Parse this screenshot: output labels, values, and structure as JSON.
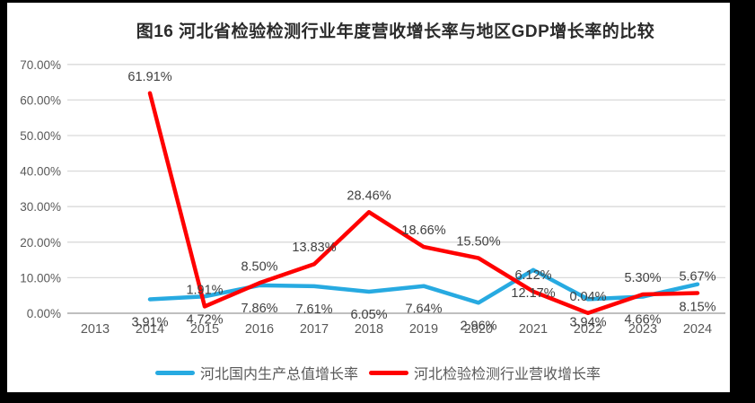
{
  "frame": {
    "outer_background": "#000000",
    "chart_background": "#ffffff"
  },
  "chart_data": {
    "type": "line",
    "title": "图16 河北省检验检测行业年度营收增长率与地区GDP增长率的比较",
    "categories": [
      "2013",
      "2014",
      "2015",
      "2016",
      "2017",
      "2018",
      "2019",
      "2020",
      "2021",
      "2022",
      "2023",
      "2024"
    ],
    "series": [
      {
        "name": "河北国内生产总值增长率",
        "color": "#27AAE1",
        "label_position": "below",
        "values": [
          null,
          3.91,
          4.72,
          7.86,
          7.61,
          6.05,
          7.64,
          2.96,
          12.17,
          3.94,
          4.66,
          8.15
        ],
        "labels": [
          "",
          "3.91%",
          "4.72%",
          "7.86%",
          "7.61%",
          "6.05%",
          "7.64%",
          "2.96%",
          "12.17%",
          "3.94%",
          "4.66%",
          "8.15%"
        ]
      },
      {
        "name": "河北检验检测行业营收增长率",
        "color": "#FF0000",
        "label_position": "above",
        "values": [
          null,
          61.91,
          1.91,
          8.5,
          13.83,
          28.46,
          18.66,
          15.5,
          6.12,
          0.04,
          5.3,
          5.67
        ],
        "labels": [
          "",
          "61.91%",
          "1.91%",
          "8.50%",
          "13.83%",
          "28.46%",
          "18.66%",
          "15.50%",
          "6.12%",
          "0.04%",
          "5.30%",
          "5.67%"
        ]
      }
    ],
    "y_axis": {
      "min": 0,
      "max": 70,
      "step": 10,
      "tick_labels": [
        "0.00%",
        "10.00%",
        "20.00%",
        "30.00%",
        "40.00%",
        "50.00%",
        "60.00%",
        "70.00%"
      ]
    },
    "x_axis": {
      "tick_labels": [
        "2013",
        "2014",
        "2015",
        "2016",
        "2017",
        "2018",
        "2019",
        "2020",
        "2021",
        "2022",
        "2023",
        "2024"
      ]
    },
    "grid": true,
    "gridline_color": "#D9D9D9",
    "axis_line_color": "#BFBFBF",
    "legend_position": "bottom"
  }
}
